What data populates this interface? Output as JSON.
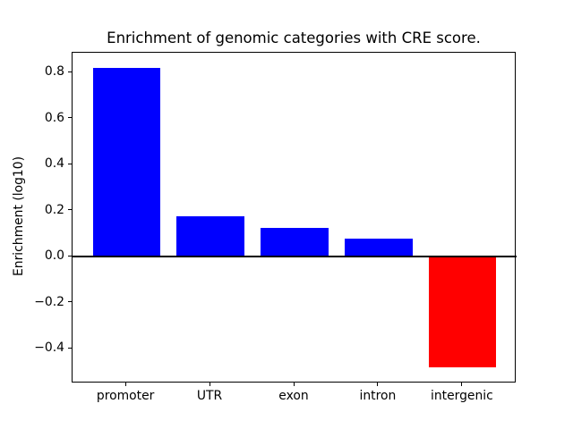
{
  "figure": {
    "background": "#ffffff"
  },
  "chart_data": {
    "type": "bar",
    "title": "Enrichment of genomic categories with CRE score.",
    "xlabel": "",
    "ylabel": "Enrichment (log10)",
    "categories": [
      "promoter",
      "UTR",
      "exon",
      "intron",
      "intergenic"
    ],
    "values": [
      0.82,
      0.175,
      0.125,
      0.08,
      -0.48
    ],
    "yticks": [
      0.8,
      0.6,
      0.4,
      0.2,
      0.0,
      -0.2,
      -0.4
    ],
    "ytick_labels": [
      "0.8",
      "0.6",
      "0.4",
      "0.2",
      "0.0",
      "−0.2",
      "−0.4"
    ],
    "ylim": [
      -0.549,
      0.887
    ],
    "xlim": [
      -0.64,
      4.64
    ],
    "bar_width": 0.8,
    "positive_color": "#0000ff",
    "negative_color": "#ff0000",
    "zero_line": true,
    "zero_line_color": "#000000",
    "grid": false,
    "legend": null
  }
}
